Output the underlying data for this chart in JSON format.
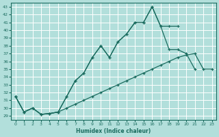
{
  "xlabel": "Humidex (Indice chaleur)",
  "background_color": "#b2dfdb",
  "grid_color": "#ffffff",
  "line_color": "#1a6b5e",
  "xlim": [
    -0.5,
    23.5
  ],
  "ylim": [
    28.5,
    43.5
  ],
  "xticks": [
    0,
    1,
    2,
    3,
    4,
    5,
    6,
    7,
    8,
    9,
    10,
    11,
    12,
    13,
    14,
    15,
    16,
    17,
    18,
    19,
    20,
    21,
    22,
    23
  ],
  "yticks": [
    29,
    30,
    31,
    32,
    33,
    34,
    35,
    36,
    37,
    38,
    39,
    40,
    41,
    42,
    43
  ],
  "line1_x": [
    0,
    1,
    2,
    3,
    4,
    5,
    6,
    7,
    8,
    9,
    10,
    11,
    12,
    13,
    14,
    15,
    16,
    17,
    18,
    19
  ],
  "line1_y": [
    31.5,
    29.5,
    30.0,
    29.2,
    29.3,
    29.5,
    31.5,
    33.5,
    34.5,
    36.5,
    38.0,
    36.5,
    38.5,
    39.5,
    41.0,
    41.0,
    43.0,
    40.5,
    40.5,
    40.5
  ],
  "line2_x": [
    0,
    1,
    2,
    3,
    4,
    5,
    6,
    7,
    8,
    9,
    10,
    11,
    12,
    13,
    14,
    15,
    16,
    17,
    18,
    19,
    20,
    21
  ],
  "line2_y": [
    31.5,
    29.5,
    30.0,
    29.2,
    29.3,
    29.5,
    31.5,
    33.5,
    34.5,
    36.5,
    38.0,
    36.5,
    38.5,
    39.5,
    41.0,
    41.0,
    43.0,
    40.5,
    37.5,
    37.5,
    37.0,
    35.0
  ],
  "line3_x": [
    0,
    1,
    2,
    3,
    4,
    5,
    6,
    7,
    8,
    9,
    10,
    11,
    12,
    13,
    14,
    15,
    16,
    17,
    18,
    19,
    20,
    21,
    22,
    23
  ],
  "line3_y": [
    31.5,
    29.5,
    30.0,
    29.2,
    29.3,
    29.5,
    30.0,
    30.5,
    31.0,
    31.5,
    32.0,
    32.5,
    33.0,
    33.5,
    34.0,
    34.5,
    35.0,
    35.5,
    36.0,
    36.5,
    36.8,
    37.0,
    35.0,
    35.0
  ]
}
